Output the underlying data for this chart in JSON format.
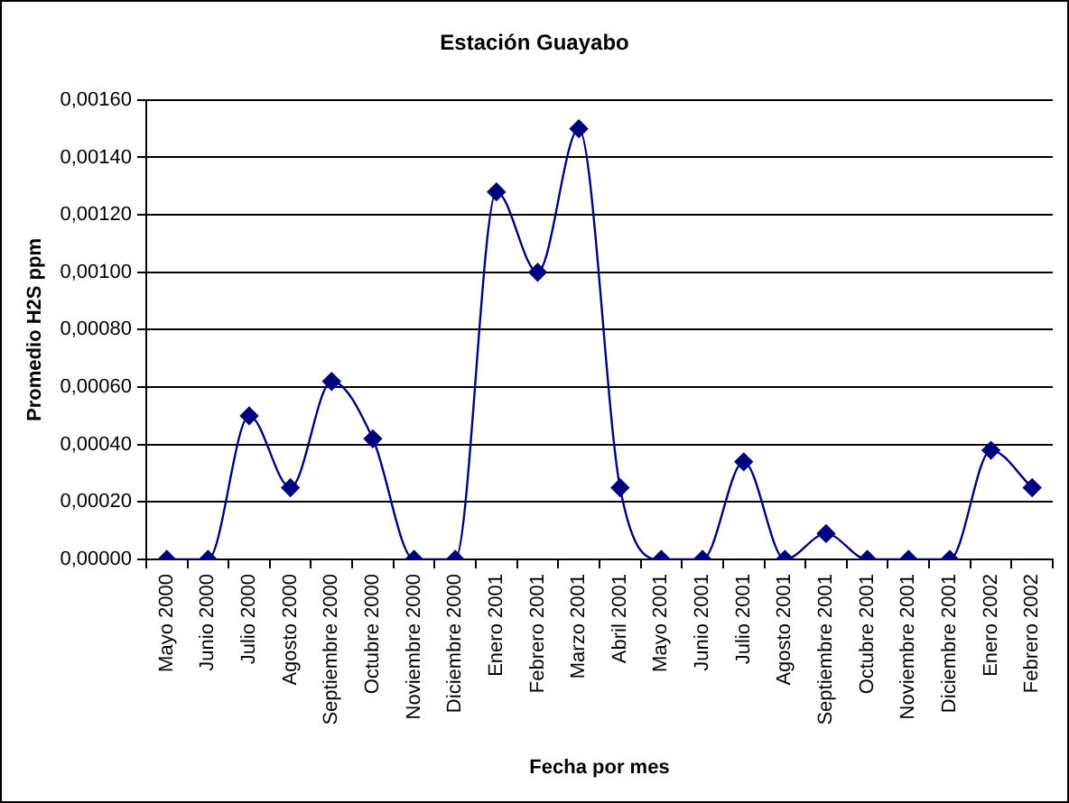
{
  "chart_data": {
    "type": "line",
    "title": "Estación Guayabo",
    "xlabel": "Fecha por mes",
    "ylabel": "Promedio H2S ppm",
    "categories": [
      "Mayo 2000",
      "Junio 2000",
      "Julio 2000",
      "Agosto 2000",
      "Septiembre 2000",
      "Octubre 2000",
      "Noviembre 2000",
      "Diciembre 2000",
      "Enero 2001",
      "Febrero 2001",
      "Marzo 2001",
      "Abril 2001",
      "Mayo 2001",
      "Junio 2001",
      "Julio 2001",
      "Agosto 2001",
      "Septiembre 2001",
      "Octubre 2001",
      "Noviembre 2001",
      "Diciembre 2001",
      "Enero 2002",
      "Febrero 2002"
    ],
    "series": [
      {
        "color": "#000080",
        "values": [
          0,
          0,
          0.0005,
          0.00025,
          0.00062,
          0.00042,
          0,
          0,
          0.00128,
          0.001,
          0.0015,
          0.00025,
          0,
          0,
          0.00034,
          0,
          9e-05,
          0,
          0,
          0,
          0.00038,
          0.00025
        ]
      }
    ],
    "ylim": [
      0,
      0.0016
    ],
    "yticks": [
      {
        "value": 0,
        "label": "0,00000"
      },
      {
        "value": 0.0002,
        "label": "0,00020"
      },
      {
        "value": 0.0004,
        "label": "0,00040"
      },
      {
        "value": 0.0006,
        "label": "0,00060"
      },
      {
        "value": 0.0008,
        "label": "0,00080"
      },
      {
        "value": 0.001,
        "label": "0,00100"
      },
      {
        "value": 0.0012,
        "label": "0,00120"
      },
      {
        "value": 0.0014,
        "label": "0,00140"
      },
      {
        "value": 0.0016,
        "label": "0,00160"
      }
    ],
    "grid": "y",
    "legend": false,
    "marker": "diamond",
    "line_style": "solid"
  }
}
